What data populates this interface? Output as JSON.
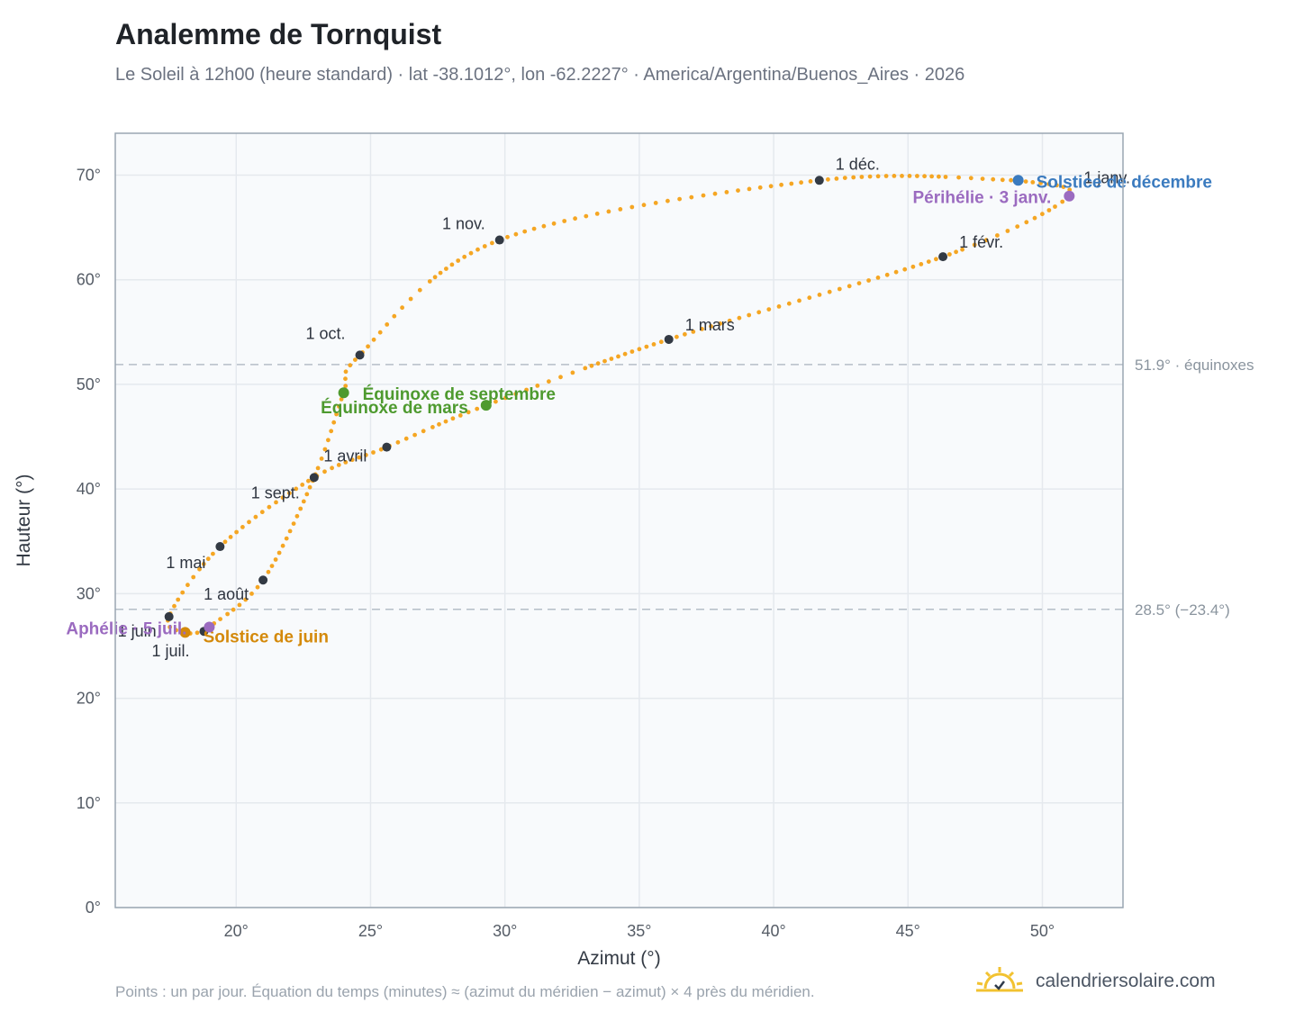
{
  "header": {
    "title": "Analemme de Tornquist",
    "subtitle": "Le Soleil à 12h00 (heure standard) · lat -38.1012°, lon -62.2227° · America/Argentina/Buenos_Aires · 2026"
  },
  "footer": {
    "footnote": "Points : un par jour. Équation du temps (minutes) ≈ (azimut du méridien − azimut) × 4 près du méridien.",
    "brand": "calendriersolaire.com"
  },
  "colors": {
    "curve": "#f5a623",
    "month_marker": "#333a44",
    "equinox": "#4e9a2f",
    "june_solstice": "#d4890a",
    "december_solstice": "#3b7bbf",
    "apsis": "#9b6bc0",
    "grid": "#e5e9ee",
    "plot_background": "#f8fafc",
    "reference_line": "#b5bec7"
  },
  "chart_data": {
    "type": "scatter",
    "xlabel": "Azimut (°)",
    "ylabel": "Hauteur (°)",
    "xlim": [
      15.5,
      53
    ],
    "ylim": [
      0,
      74
    ],
    "xticks": [
      20,
      25,
      30,
      35,
      40,
      45,
      50
    ],
    "yticks": [
      0,
      10,
      20,
      30,
      40,
      50,
      60,
      70
    ],
    "xtick_labels": [
      "20°",
      "25°",
      "30°",
      "35°",
      "40°",
      "45°",
      "50°"
    ],
    "ytick_labels": [
      "0°",
      "10°",
      "20°",
      "30°",
      "40°",
      "50°",
      "60°",
      "70°"
    ],
    "grid": true,
    "reference_lines": [
      {
        "y": 51.9,
        "label": "51.9° · équinoxes"
      },
      {
        "y": 28.5,
        "label": "28.5° (−23.4°)"
      }
    ],
    "month_markers": [
      {
        "label": "1 janv.",
        "x": 51.0,
        "y": 68.0
      },
      {
        "label": "1 févr.",
        "x": 46.3,
        "y": 62.2
      },
      {
        "label": "1 mars",
        "x": 36.1,
        "y": 54.3
      },
      {
        "label": "1 avril",
        "x": 25.6,
        "y": 44.0
      },
      {
        "label": "1 mai",
        "x": 19.4,
        "y": 34.5
      },
      {
        "label": "1 juin",
        "x": 17.5,
        "y": 27.8
      },
      {
        "label": "1 juil.",
        "x": 18.8,
        "y": 26.4
      },
      {
        "label": "1 août",
        "x": 21.0,
        "y": 31.3
      },
      {
        "label": "1 sept.",
        "x": 22.9,
        "y": 41.1
      },
      {
        "label": "1 oct.",
        "x": 24.6,
        "y": 52.8
      },
      {
        "label": "1 nov.",
        "x": 29.8,
        "y": 63.8
      },
      {
        "label": "1 déc.",
        "x": 41.7,
        "y": 69.5
      }
    ],
    "events": [
      {
        "label": "Solstice de décembre",
        "x": 49.1,
        "y": 69.5,
        "color_key": "december_solstice"
      },
      {
        "label": "Périhélie · 3 janv.",
        "x": 51.0,
        "y": 68.0,
        "color_key": "apsis"
      },
      {
        "label": "Équinoxe de septembre",
        "x": 24.0,
        "y": 49.2,
        "color_key": "equinox"
      },
      {
        "label": "Équinoxe de mars",
        "x": 29.3,
        "y": 48.0,
        "color_key": "equinox"
      },
      {
        "label": "Solstice de juin",
        "x": 18.1,
        "y": 26.3,
        "color_key": "june_solstice"
      },
      {
        "label": "Aphélie · 5 juil.",
        "x": 19.0,
        "y": 26.8,
        "color_key": "apsis"
      }
    ],
    "path_anchors": [
      {
        "x": 49.1,
        "y": 69.5
      },
      {
        "x": 51.0,
        "y": 68.0
      },
      {
        "x": 46.3,
        "y": 62.2
      },
      {
        "x": 36.1,
        "y": 54.3
      },
      {
        "x": 29.3,
        "y": 48.0
      },
      {
        "x": 25.6,
        "y": 44.0
      },
      {
        "x": 22.9,
        "y": 41.1
      },
      {
        "x": 19.4,
        "y": 34.5
      },
      {
        "x": 17.5,
        "y": 27.8
      },
      {
        "x": 18.1,
        "y": 26.3
      },
      {
        "x": 18.8,
        "y": 26.4
      },
      {
        "x": 19.0,
        "y": 26.8
      },
      {
        "x": 21.0,
        "y": 31.3
      },
      {
        "x": 22.9,
        "y": 41.1
      },
      {
        "x": 24.0,
        "y": 49.2
      },
      {
        "x": 24.6,
        "y": 52.8
      },
      {
        "x": 29.8,
        "y": 63.8
      },
      {
        "x": 41.7,
        "y": 69.5
      },
      {
        "x": 49.1,
        "y": 69.5
      }
    ]
  }
}
